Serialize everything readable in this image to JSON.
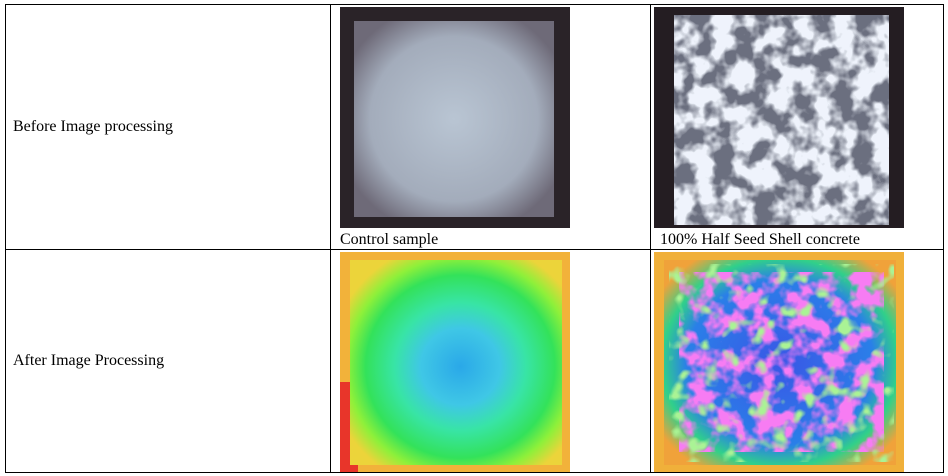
{
  "table": {
    "rows": [
      {
        "label": "Before Image processing",
        "cells": [
          {
            "caption": "Control sample"
          },
          {
            "caption": "100% Half Seed Shell concrete"
          }
        ]
      },
      {
        "label": "After Image Processing"
      }
    ]
  }
}
